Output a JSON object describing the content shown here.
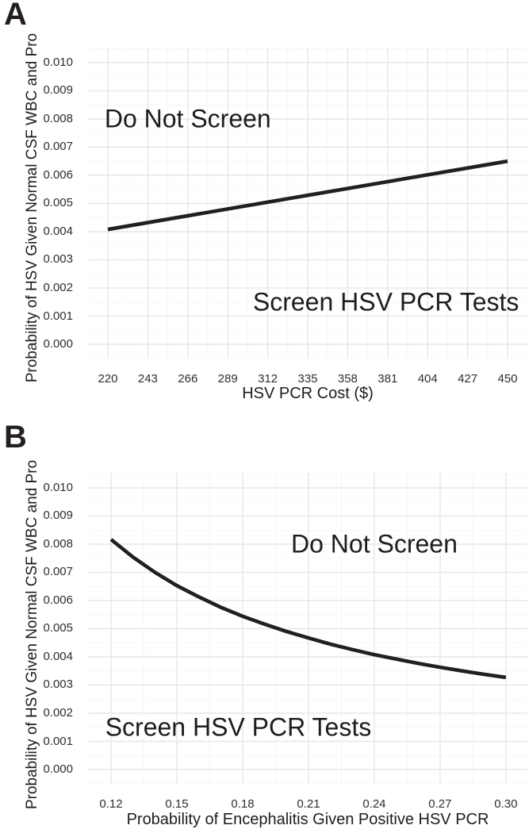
{
  "colors": {
    "line": "#231f20",
    "grid_major": "#e7e7e7",
    "grid_minor": "#f3f3f3",
    "text": "#1d1d1d",
    "background": "#ffffff"
  },
  "chart_data": [
    {
      "type": "line",
      "panel_label": "A",
      "xlabel": "HSV PCR Cost ($)",
      "ylabel": "Probability of HSV Given Normal CSF WBC and Pro",
      "categories": [
        220,
        243,
        266,
        289,
        312,
        335,
        358,
        381,
        404,
        427,
        450
      ],
      "xtick_labels": [
        "220",
        "243",
        "266",
        "289",
        "312",
        "335",
        "358",
        "381",
        "404",
        "427",
        "450"
      ],
      "values": [
        0.0041,
        0.0043,
        0.0046,
        0.0048,
        0.005,
        0.0053,
        0.0055,
        0.0058,
        0.006,
        0.0063,
        0.0065
      ],
      "yticks": [
        0.0,
        0.001,
        0.002,
        0.003,
        0.004,
        0.005,
        0.006,
        0.007,
        0.008,
        0.009,
        0.01
      ],
      "ytick_labels": [
        "0.000",
        "0.001",
        "0.002",
        "0.003",
        "0.004",
        "0.005",
        "0.006",
        "0.007",
        "0.008",
        "0.009",
        "0.010"
      ],
      "xlim": [
        208.6,
        461.4
      ],
      "ylim": [
        -0.000507,
        0.010535
      ],
      "grid": true,
      "legend": "none",
      "series": [
        {
          "name": "screening threshold",
          "points": [
            [
              220,
              0.00408
            ],
            [
              450,
              0.0065
            ]
          ]
        }
      ],
      "annotations": [
        {
          "text": "Do Not Screen",
          "x": 266,
          "y": 0.008
        },
        {
          "text": "Screen HSV PCR Tests",
          "x": 380,
          "y": 0.0015
        }
      ]
    },
    {
      "type": "line",
      "panel_label": "B",
      "xlabel": "Probability of Encephalitis Given Positive HSV PCR",
      "ylabel": "Probability of HSV Given Normal CSF WBC and Pro",
      "categories": [
        0.12,
        0.15,
        0.18,
        0.21,
        0.24,
        0.27,
        0.3
      ],
      "xtick_labels": [
        "0.12",
        "0.15",
        "0.18",
        "0.21",
        "0.24",
        "0.27",
        "0.30"
      ],
      "values": [
        0.0082,
        0.0065,
        0.0054,
        0.0047,
        0.0041,
        0.0036,
        0.0033
      ],
      "yticks": [
        0.0,
        0.001,
        0.002,
        0.003,
        0.004,
        0.005,
        0.006,
        0.007,
        0.008,
        0.009,
        0.01
      ],
      "ytick_labels": [
        "0.000",
        "0.001",
        "0.002",
        "0.003",
        "0.004",
        "0.005",
        "0.006",
        "0.007",
        "0.008",
        "0.009",
        "0.010"
      ],
      "xlim": [
        0.1095,
        0.3098
      ],
      "ylim": [
        -0.000507,
        0.010535
      ],
      "grid": true,
      "legend": "none",
      "series": [
        {
          "name": "screening threshold",
          "points": [
            [
              0.12,
              0.00817
            ],
            [
              0.13,
              0.00754
            ],
            [
              0.14,
              0.007
            ],
            [
              0.15,
              0.00653
            ],
            [
              0.16,
              0.00613
            ],
            [
              0.17,
              0.00576
            ],
            [
              0.18,
              0.00544
            ],
            [
              0.19,
              0.00516
            ],
            [
              0.2,
              0.0049
            ],
            [
              0.21,
              0.00467
            ],
            [
              0.22,
              0.00445
            ],
            [
              0.23,
              0.00426
            ],
            [
              0.24,
              0.00408
            ],
            [
              0.25,
              0.00392
            ],
            [
              0.26,
              0.00377
            ],
            [
              0.27,
              0.00363
            ],
            [
              0.28,
              0.0035
            ],
            [
              0.29,
              0.00338
            ],
            [
              0.3,
              0.00327
            ]
          ]
        }
      ],
      "annotations": [
        {
          "text": "Do Not Screen",
          "x": 0.24,
          "y": 0.008
        },
        {
          "text": "Screen HSV PCR Tests",
          "x": 0.178,
          "y": 0.0015
        }
      ]
    }
  ]
}
